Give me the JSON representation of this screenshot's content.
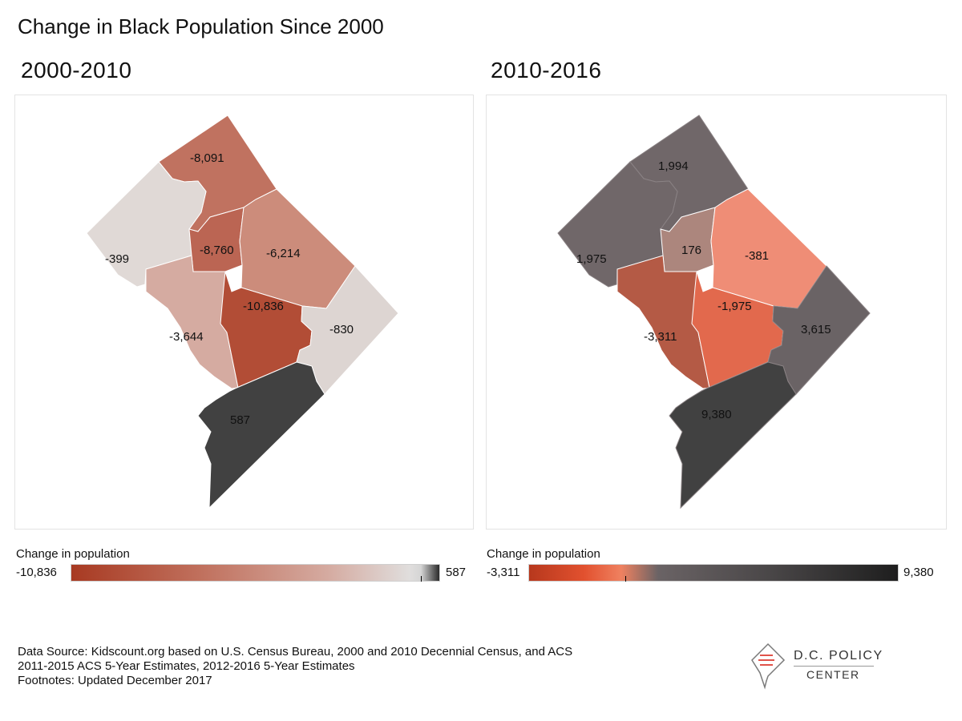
{
  "title": "Change in Black Population Since 2000",
  "maps": [
    {
      "title": "2000-2010",
      "legend": {
        "title": "Change in population",
        "min": "-10,836",
        "max": "587",
        "zero_position": 0.95
      },
      "regions": [
        {
          "id": "north",
          "value": "-8,091",
          "color": "#c07260"
        },
        {
          "id": "west",
          "value": "-399",
          "color": "#e0d9d6"
        },
        {
          "id": "center-north",
          "value": "-8,760",
          "color": "#bb6553"
        },
        {
          "id": "northeast",
          "value": "-6,214",
          "color": "#cc8c7b"
        },
        {
          "id": "southwest",
          "value": "-3,644",
          "color": "#d5aba1"
        },
        {
          "id": "center",
          "value": "-10,836",
          "color": "#b24d36"
        },
        {
          "id": "east",
          "value": "-830",
          "color": "#ddd5d2"
        },
        {
          "id": "south",
          "value": "587",
          "color": "#414141"
        }
      ]
    },
    {
      "title": "2010-2016",
      "legend": {
        "title": "Change in population",
        "min": "-3,311",
        "max": "9,380",
        "zero_position": 0.26
      },
      "regions": [
        {
          "id": "north",
          "value": "1,994",
          "color": "#706769"
        },
        {
          "id": "west",
          "value": "1,975",
          "color": "#706769"
        },
        {
          "id": "center-north",
          "value": "176",
          "color": "#ac867d"
        },
        {
          "id": "northeast",
          "value": "-381",
          "color": "#ef8d76"
        },
        {
          "id": "southwest",
          "value": "-3,311",
          "color": "#b45a45"
        },
        {
          "id": "center",
          "value": "-1,975",
          "color": "#e2694d"
        },
        {
          "id": "east",
          "value": "3,615",
          "color": "#6a6365"
        },
        {
          "id": "south",
          "value": "9,380",
          "color": "#414141"
        }
      ]
    }
  ],
  "footer": {
    "lines": [
      "Data Source: Kidscount.org based on U.S. Census Bureau, 2000 and 2010 Decennial Census, and ACS",
      "2011-2015 ACS 5-Year Estimates, 2012-2016 5-Year Estimates",
      "Footnotes: Updated December 2017"
    ]
  },
  "logo": {
    "line1": "D.C. POLICY",
    "line2": "CENTER"
  }
}
